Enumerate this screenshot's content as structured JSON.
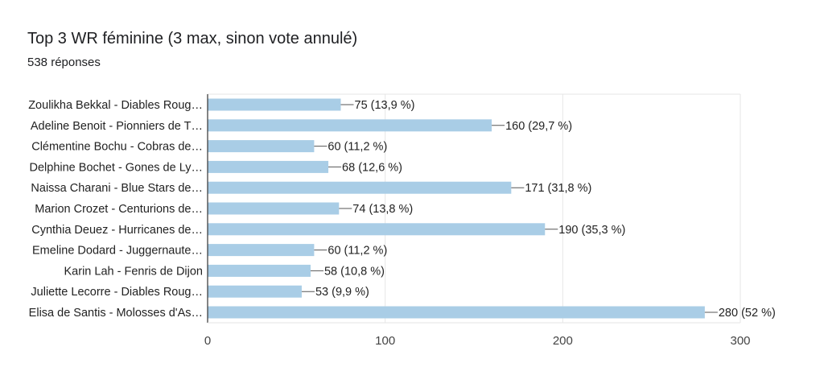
{
  "header": {
    "title": "Top 3 WR féminine (3 max, sinon vote annulé)",
    "subtitle": "538 réponses"
  },
  "colors": {
    "bar": "#a9cde6",
    "grid": "#e6e6e6",
    "axis": "#333333"
  },
  "chart_data": {
    "type": "bar",
    "orientation": "horizontal",
    "title": "Top 3 WR féminine (3 max, sinon vote annulé)",
    "subtitle": "538 réponses",
    "categories": [
      "Zoulikha Bekkal - Diables Roug…",
      "Adeline Benoit - Pionniers de T…",
      "Clémentine Bochu - Cobras de…",
      "Delphine Bochet - Gones de Ly…",
      "Naissa Charani - Blue Stars de…",
      "Marion Crozet - Centurions de…",
      "Cynthia Deuez - Hurricanes de…",
      "Emeline Dodard - Juggernaute…",
      "Karin Lah - Fenris de Dijon",
      "Juliette Lecorre - Diables Roug…",
      "Elisa de Santis - Molosses d'As…"
    ],
    "values": [
      75,
      160,
      60,
      68,
      171,
      74,
      190,
      60,
      58,
      53,
      280
    ],
    "data_labels": [
      "75 (13,9 %)",
      "160 (29,7 %)",
      "60 (11,2 %)",
      "68 (12,6 %)",
      "171 (31,8 %)",
      "74 (13,8 %)",
      "190 (35,3 %)",
      "60 (11,2 %)",
      "58 (10,8 %)",
      "53 (9,9 %)",
      "280 (52 %)"
    ],
    "xlim": [
      0,
      300
    ],
    "xticks": [
      0,
      100,
      200,
      300
    ],
    "xtick_labels": [
      "0",
      "100",
      "200",
      "300"
    ],
    "grid": true,
    "legend": "none"
  }
}
